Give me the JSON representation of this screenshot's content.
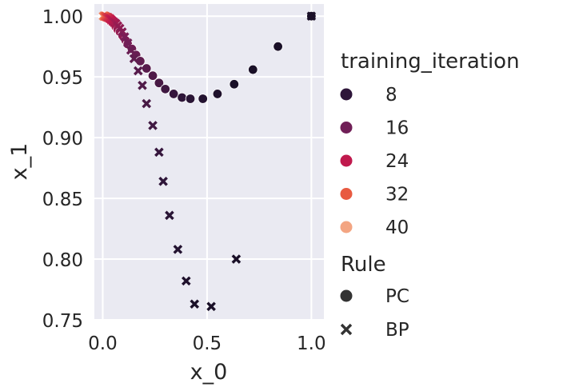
{
  "chart_data": {
    "type": "scatter",
    "title": "",
    "xlabel": "x_0",
    "ylabel": "x_1",
    "xlim": [
      -0.04,
      1.06
    ],
    "ylim": [
      0.75,
      1.01
    ],
    "xticks": [
      0.0,
      0.5,
      1.0
    ],
    "xtick_labels": [
      "0.0",
      "0.5",
      "1.0"
    ],
    "yticks": [
      0.75,
      0.8,
      0.85,
      0.9,
      0.95,
      1.0
    ],
    "ytick_labels": [
      "0.75",
      "0.80",
      "0.85",
      "0.90",
      "0.95",
      "1.00"
    ],
    "grid": true,
    "background": "#eaeaf2",
    "legend": {
      "position": "right",
      "hue_title": "training_iteration",
      "hue_entries": [
        {
          "label": "8",
          "color": "#2e1539"
        },
        {
          "label": "16",
          "color": "#701f57"
        },
        {
          "label": "24",
          "color": "#c0194d"
        },
        {
          "label": "32",
          "color": "#e85a41"
        },
        {
          "label": "40",
          "color": "#f3a582"
        }
      ],
      "style_title": "Rule",
      "style_entries": [
        {
          "label": "PC",
          "marker": "circle"
        },
        {
          "label": "BP",
          "marker": "x"
        }
      ]
    },
    "series": [
      {
        "name": "PC",
        "marker": "circle",
        "points": [
          {
            "x": 1.0,
            "y": 1.0,
            "iteration": 1
          },
          {
            "x": 0.84,
            "y": 0.975,
            "iteration": 2
          },
          {
            "x": 0.72,
            "y": 0.956,
            "iteration": 3
          },
          {
            "x": 0.63,
            "y": 0.944,
            "iteration": 4
          },
          {
            "x": 0.55,
            "y": 0.936,
            "iteration": 5
          },
          {
            "x": 0.48,
            "y": 0.932,
            "iteration": 6
          },
          {
            "x": 0.42,
            "y": 0.932,
            "iteration": 7
          },
          {
            "x": 0.38,
            "y": 0.933,
            "iteration": 8
          },
          {
            "x": 0.34,
            "y": 0.936,
            "iteration": 9
          },
          {
            "x": 0.3,
            "y": 0.94,
            "iteration": 10
          },
          {
            "x": 0.27,
            "y": 0.945,
            "iteration": 11
          },
          {
            "x": 0.24,
            "y": 0.951,
            "iteration": 12
          },
          {
            "x": 0.21,
            "y": 0.957,
            "iteration": 13
          },
          {
            "x": 0.18,
            "y": 0.963,
            "iteration": 14
          },
          {
            "x": 0.16,
            "y": 0.968,
            "iteration": 15
          },
          {
            "x": 0.14,
            "y": 0.973,
            "iteration": 16
          },
          {
            "x": 0.12,
            "y": 0.977,
            "iteration": 17
          },
          {
            "x": 0.11,
            "y": 0.98,
            "iteration": 18
          },
          {
            "x": 0.095,
            "y": 0.984,
            "iteration": 19
          },
          {
            "x": 0.083,
            "y": 0.987,
            "iteration": 20
          },
          {
            "x": 0.072,
            "y": 0.989,
            "iteration": 21
          },
          {
            "x": 0.063,
            "y": 0.991,
            "iteration": 22
          },
          {
            "x": 0.055,
            "y": 0.993,
            "iteration": 23
          },
          {
            "x": 0.048,
            "y": 0.994,
            "iteration": 24
          },
          {
            "x": 0.041,
            "y": 0.995,
            "iteration": 25
          },
          {
            "x": 0.036,
            "y": 0.996,
            "iteration": 26
          },
          {
            "x": 0.031,
            "y": 0.997,
            "iteration": 27
          },
          {
            "x": 0.027,
            "y": 0.998,
            "iteration": 28
          },
          {
            "x": 0.023,
            "y": 0.998,
            "iteration": 29
          },
          {
            "x": 0.02,
            "y": 0.999,
            "iteration": 30
          },
          {
            "x": 0.017,
            "y": 0.999,
            "iteration": 31
          },
          {
            "x": 0.014,
            "y": 0.999,
            "iteration": 32
          },
          {
            "x": 0.012,
            "y": 0.9995,
            "iteration": 33
          },
          {
            "x": 0.01,
            "y": 0.9995,
            "iteration": 34
          },
          {
            "x": 0.008,
            "y": 1.0,
            "iteration": 35
          },
          {
            "x": 0.006,
            "y": 1.0,
            "iteration": 36
          },
          {
            "x": 0.005,
            "y": 1.0,
            "iteration": 37
          },
          {
            "x": 0.004,
            "y": 1.0,
            "iteration": 38
          },
          {
            "x": 0.003,
            "y": 1.0,
            "iteration": 39
          },
          {
            "x": 0.002,
            "y": 1.0,
            "iteration": 40
          }
        ]
      },
      {
        "name": "BP",
        "marker": "x",
        "points": [
          {
            "x": 1.0,
            "y": 1.0,
            "iteration": 1
          },
          {
            "x": 0.64,
            "y": 0.8,
            "iteration": 2
          },
          {
            "x": 0.52,
            "y": 0.761,
            "iteration": 3
          },
          {
            "x": 0.44,
            "y": 0.763,
            "iteration": 4
          },
          {
            "x": 0.4,
            "y": 0.782,
            "iteration": 5
          },
          {
            "x": 0.36,
            "y": 0.808,
            "iteration": 6
          },
          {
            "x": 0.32,
            "y": 0.836,
            "iteration": 7
          },
          {
            "x": 0.29,
            "y": 0.864,
            "iteration": 8
          },
          {
            "x": 0.27,
            "y": 0.888,
            "iteration": 9
          },
          {
            "x": 0.24,
            "y": 0.91,
            "iteration": 10
          },
          {
            "x": 0.21,
            "y": 0.928,
            "iteration": 11
          },
          {
            "x": 0.19,
            "y": 0.943,
            "iteration": 12
          },
          {
            "x": 0.17,
            "y": 0.955,
            "iteration": 13
          },
          {
            "x": 0.15,
            "y": 0.965,
            "iteration": 14
          },
          {
            "x": 0.135,
            "y": 0.972,
            "iteration": 15
          },
          {
            "x": 0.12,
            "y": 0.978,
            "iteration": 16
          },
          {
            "x": 0.105,
            "y": 0.983,
            "iteration": 17
          },
          {
            "x": 0.093,
            "y": 0.987,
            "iteration": 18
          },
          {
            "x": 0.082,
            "y": 0.99,
            "iteration": 19
          },
          {
            "x": 0.072,
            "y": 0.992,
            "iteration": 20
          },
          {
            "x": 0.063,
            "y": 0.994,
            "iteration": 21
          },
          {
            "x": 0.055,
            "y": 0.995,
            "iteration": 22
          },
          {
            "x": 0.048,
            "y": 0.996,
            "iteration": 23
          },
          {
            "x": 0.042,
            "y": 0.997,
            "iteration": 24
          },
          {
            "x": 0.036,
            "y": 0.998,
            "iteration": 25
          },
          {
            "x": 0.031,
            "y": 0.998,
            "iteration": 26
          },
          {
            "x": 0.027,
            "y": 0.999,
            "iteration": 27
          },
          {
            "x": 0.023,
            "y": 0.999,
            "iteration": 28
          },
          {
            "x": 0.02,
            "y": 0.999,
            "iteration": 29
          },
          {
            "x": 0.017,
            "y": 0.9995,
            "iteration": 30
          },
          {
            "x": 0.014,
            "y": 0.9995,
            "iteration": 31
          },
          {
            "x": 0.012,
            "y": 1.0,
            "iteration": 32
          },
          {
            "x": 0.01,
            "y": 1.0,
            "iteration": 33
          },
          {
            "x": 0.008,
            "y": 1.0,
            "iteration": 34
          },
          {
            "x": 0.007,
            "y": 1.0,
            "iteration": 35
          },
          {
            "x": 0.006,
            "y": 1.0,
            "iteration": 36
          },
          {
            "x": 0.005,
            "y": 1.0,
            "iteration": 37
          },
          {
            "x": 0.004,
            "y": 1.0,
            "iteration": 38
          },
          {
            "x": 0.003,
            "y": 1.0,
            "iteration": 39
          },
          {
            "x": 0.002,
            "y": 1.0,
            "iteration": 40
          }
        ]
      }
    ]
  }
}
